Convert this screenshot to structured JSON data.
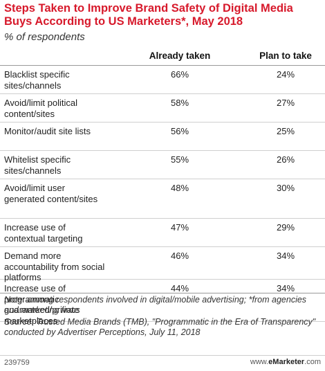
{
  "chart_data": {
    "type": "table",
    "title": "Steps Taken to Improve Brand Safety of Digital Media Buys According to US Marketers*, May 2018",
    "subtitle": "% of respondents",
    "columns": [
      "",
      "Already taken",
      "Plan to take"
    ],
    "rows": [
      {
        "label": "Blacklist specific sites/channels",
        "already_taken": "66%",
        "plan_to_take": "24%"
      },
      {
        "label": "Avoid/limit political content/sites",
        "already_taken": "58%",
        "plan_to_take": "27%"
      },
      {
        "label": "Monitor/audit site lists",
        "already_taken": "56%",
        "plan_to_take": "25%"
      },
      {
        "label": "Whitelist specific sites/channels",
        "already_taken": "55%",
        "plan_to_take": "26%"
      },
      {
        "label": "Avoid/limit user generated content/sites",
        "already_taken": "48%",
        "plan_to_take": "30%"
      },
      {
        "label": "Increase use of contextual targeting",
        "already_taken": "47%",
        "plan_to_take": "29%"
      },
      {
        "label": "Demand more accountability from social platforms",
        "already_taken": "46%",
        "plan_to_take": "34%"
      },
      {
        "label": "Increase use of programmatic guaranteed/private marketplaces",
        "already_taken": "44%",
        "plan_to_take": "34%"
      }
    ]
  },
  "footer": {
    "note": "Note: among respondents involved in digital/mobile advertising; *from agencies and marketing firms",
    "source": "Source: Trusted Media Brands (TMB), \"Programmatic in the Era of Transparency\" conducted by Advertiser Perceptions, July 11, 2018",
    "chart_id": "239759",
    "brand_prefix": "www.",
    "brand_name": "eMarketer",
    "brand_suffix": ".com"
  }
}
